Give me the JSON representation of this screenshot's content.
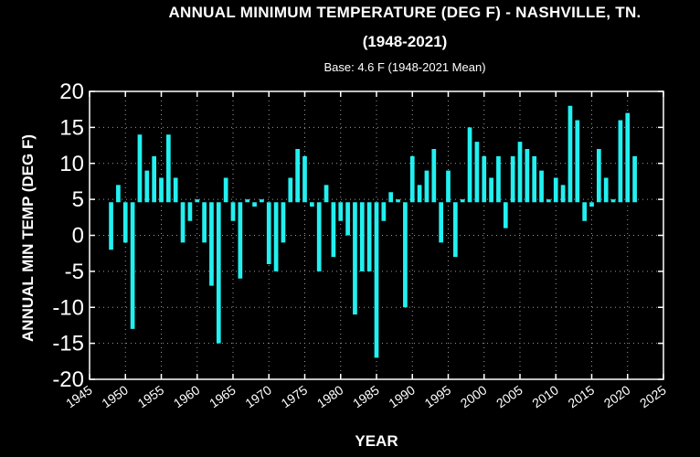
{
  "chart_data": {
    "type": "bar",
    "title": "ANNUAL MINIMUM TEMPERATURE  (DEG F) - NASHVILLE, TN.",
    "subtitle": "(1948-2021)",
    "base_label": "Base: 4.6 F (1948-2021 Mean)",
    "base": 4.6,
    "xlabel": "YEAR",
    "ylabel": "ANNUAL  MIN  TEMP (DEG F)",
    "xlim": [
      1945,
      2025
    ],
    "ylim": [
      -20,
      20
    ],
    "x_ticks": [
      "1945",
      "1950",
      "1955",
      "1960",
      "1965",
      "1970",
      "1975",
      "1980",
      "1985",
      "1990",
      "1995",
      "2000",
      "2005",
      "2010",
      "2015",
      "2020",
      "2025"
    ],
    "y_ticks": [
      "20",
      "15",
      "10",
      "5",
      "0",
      "-5",
      "-10",
      "-15",
      "-20"
    ],
    "grid": true,
    "bar_color": "#22f0f0",
    "x": [
      1948,
      1949,
      1950,
      1951,
      1952,
      1953,
      1954,
      1955,
      1956,
      1957,
      1958,
      1959,
      1960,
      1961,
      1962,
      1963,
      1964,
      1965,
      1966,
      1967,
      1968,
      1969,
      1970,
      1971,
      1972,
      1973,
      1974,
      1975,
      1976,
      1977,
      1978,
      1979,
      1980,
      1981,
      1982,
      1983,
      1984,
      1985,
      1986,
      1987,
      1988,
      1989,
      1990,
      1991,
      1992,
      1993,
      1994,
      1995,
      1996,
      1997,
      1998,
      1999,
      2000,
      2001,
      2002,
      2003,
      2004,
      2005,
      2006,
      2007,
      2008,
      2009,
      2010,
      2011,
      2012,
      2013,
      2014,
      2015,
      2016,
      2017,
      2018,
      2019,
      2020,
      2021
    ],
    "values": [
      -2,
      7,
      -1,
      -13,
      14,
      9,
      11,
      8,
      14,
      8,
      -1,
      2,
      5,
      -1,
      -7,
      -15,
      8,
      2,
      -6,
      5,
      4,
      5,
      -4,
      -5,
      -1,
      8,
      12,
      11,
      4,
      -5,
      7,
      -3,
      2,
      0,
      -11,
      -5,
      -5,
      -17,
      2,
      6,
      5,
      -10,
      11,
      7,
      9,
      12,
      -1,
      9,
      -3,
      5,
      15,
      13,
      11,
      8,
      11,
      1,
      11,
      13,
      12,
      11,
      9,
      5,
      8,
      7,
      18,
      16,
      2,
      4,
      12,
      8,
      5,
      16,
      17,
      11
    ]
  }
}
